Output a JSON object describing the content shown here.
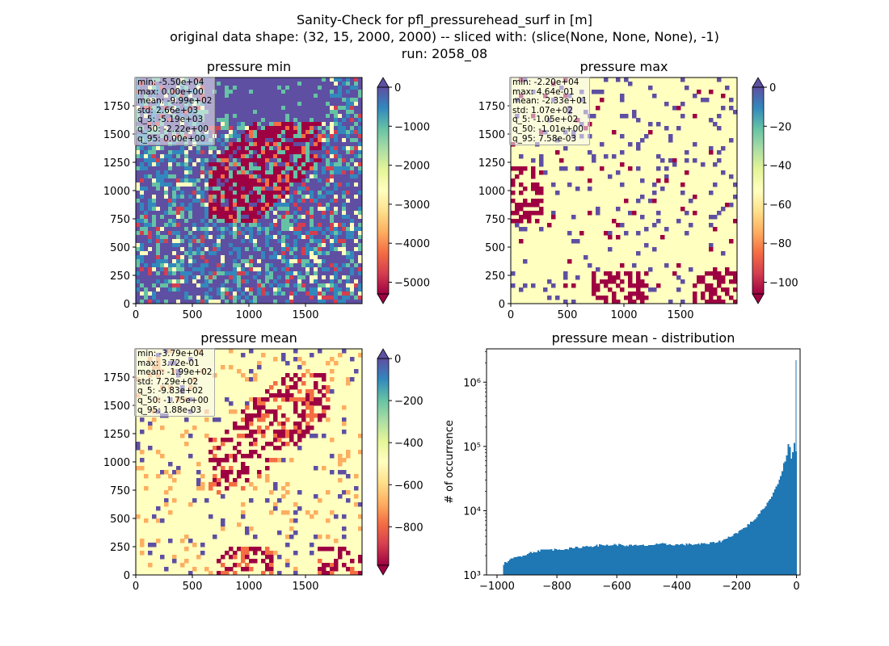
{
  "suptitle": {
    "line1": "Sanity-Check for pfl_pressurehead_surf in [m]",
    "line2": "original data shape: (32, 15, 2000, 2000) -- sliced with: (slice(None, None, None), -1)",
    "line3": "run: 2058_08"
  },
  "colormap": "Spectral",
  "colormap_stops": [
    "#9e0142",
    "#d53e4f",
    "#f46d43",
    "#fdae61",
    "#fee08b",
    "#ffffbf",
    "#e6f598",
    "#abdda4",
    "#66c2a5",
    "#3288bd",
    "#5e4fa2"
  ],
  "chart_data": [
    {
      "type": "heatmap",
      "title": "pressure min",
      "xlim": [
        0,
        2000
      ],
      "ylim": [
        0,
        2000
      ],
      "xticks": [
        0,
        500,
        1000,
        1500
      ],
      "yticks": [
        0,
        250,
        500,
        750,
        1000,
        1250,
        1500,
        1750
      ],
      "colorbar": {
        "vmin": -5300,
        "vmax": 0,
        "ticks": [
          0,
          -1000,
          -2000,
          -3000,
          -4000,
          -5000
        ],
        "tick_labels": [
          "0",
          "−1000",
          "−2000",
          "−3000",
          "−4000",
          "−5000"
        ],
        "extend_min": true,
        "extend_max": true
      },
      "stats": [
        "min: -5.50e+04",
        "max: 0.00e+00",
        "mean: -9.99e+02",
        "std: 2.66e+03",
        "q_5: -5.19e+03",
        "q_50: -2.22e+00",
        "q_95: 0.00e+00"
      ]
    },
    {
      "type": "heatmap",
      "title": "pressure max",
      "xlim": [
        0,
        2000
      ],
      "ylim": [
        0,
        2000
      ],
      "xticks": [
        0,
        500,
        1000,
        1500
      ],
      "yticks": [
        0,
        250,
        500,
        750,
        1000,
        1250,
        1500,
        1750
      ],
      "colorbar": {
        "vmin": -106,
        "vmax": 0,
        "ticks": [
          0,
          -20,
          -40,
          -60,
          -80,
          -100
        ],
        "tick_labels": [
          "0",
          "−20",
          "−40",
          "−60",
          "−80",
          "−100"
        ],
        "extend_min": true,
        "extend_max": true
      },
      "stats": [
        "min: -2.20e+04",
        "max: 4.64e-01",
        "mean: -2.33e+01",
        "std: 1.07e+02",
        "q_5: -1.05e+02",
        "q_50: -1.01e+00",
        "q_95: 7.58e-03"
      ]
    },
    {
      "type": "heatmap",
      "title": "pressure mean",
      "xlim": [
        0,
        2000
      ],
      "ylim": [
        0,
        2000
      ],
      "xticks": [
        0,
        500,
        1000,
        1500
      ],
      "yticks": [
        0,
        250,
        500,
        750,
        1000,
        1250,
        1500,
        1750
      ],
      "colorbar": {
        "vmin": -983,
        "vmax": 0,
        "ticks": [
          0,
          -200,
          -400,
          -600,
          -800
        ],
        "tick_labels": [
          "0",
          "−200",
          "−400",
          "−600",
          "−800"
        ],
        "extend_min": true,
        "extend_max": true
      },
      "stats": [
        "min: -3.79e+04",
        "max: 3.72e-01",
        "mean: -1.99e+02",
        "std: 7.29e+02",
        "q_5: -9.83e+02",
        "q_50: -1.75e+00",
        "q_95: 1.88e-03"
      ]
    },
    {
      "type": "bar",
      "title": "pressure mean - distribution",
      "ylabel": "# of occurrence",
      "xlabel": "",
      "yscale": "log",
      "color": "#1f77b4",
      "xlim": [
        -1035,
        12
      ],
      "ylim": [
        1000,
        3300000
      ],
      "xticks": [
        -1000,
        -800,
        -600,
        -400,
        -200,
        0
      ],
      "xtick_labels": [
        "−1000",
        "−800",
        "−600",
        "−400",
        "−200",
        "0"
      ],
      "yticks": [
        1000,
        10000,
        100000,
        1000000
      ],
      "ytick_labels": [
        "10³",
        "10⁴",
        "10⁵",
        "10⁶"
      ],
      "bin_width": 5,
      "x": [
        -980,
        -950,
        -920,
        -900,
        -880,
        -850,
        -800,
        -750,
        -700,
        -650,
        -600,
        -550,
        -500,
        -450,
        -400,
        -350,
        -300,
        -250,
        -200,
        -175,
        -150,
        -125,
        -100,
        -90,
        -80,
        -70,
        -60,
        -50,
        -45,
        -40,
        -35,
        -30,
        -25,
        -20,
        -15,
        -10,
        -5,
        0
      ],
      "values": [
        1500,
        1800,
        2000,
        2150,
        2300,
        2450,
        2500,
        2600,
        2800,
        2900,
        2950,
        2850,
        2900,
        3000,
        2950,
        3000,
        3050,
        3400,
        4600,
        5500,
        6800,
        9000,
        13000,
        15500,
        19000,
        24000,
        30000,
        42000,
        55000,
        60000,
        70000,
        110000,
        95000,
        65000,
        80000,
        115000,
        85000,
        2200000
      ]
    }
  ]
}
